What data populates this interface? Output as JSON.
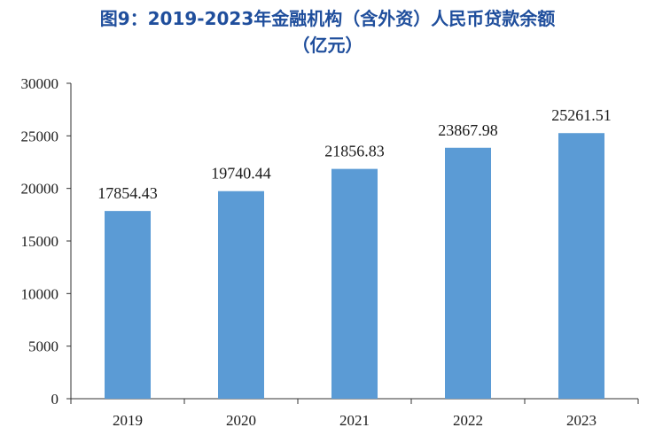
{
  "chart_data": {
    "type": "bar",
    "title_line1": "图9：2019-2023年金融机构（含外资）人民币贷款余额",
    "title_line2": "（亿元）",
    "categories": [
      "2019",
      "2020",
      "2021",
      "2022",
      "2023"
    ],
    "values": [
      17854.43,
      19740.44,
      21856.83,
      23867.98,
      25261.51
    ],
    "value_labels": [
      "17854.43",
      "19740.44",
      "21856.83",
      "23867.98",
      "25261.51"
    ],
    "ylim": [
      0,
      30000
    ],
    "yticks": [
      "0",
      "5000",
      "10000",
      "15000",
      "20000",
      "25000",
      "30000"
    ],
    "xlabel": "",
    "ylabel": "",
    "grid": false,
    "bar_color": "#5b9bd5"
  }
}
